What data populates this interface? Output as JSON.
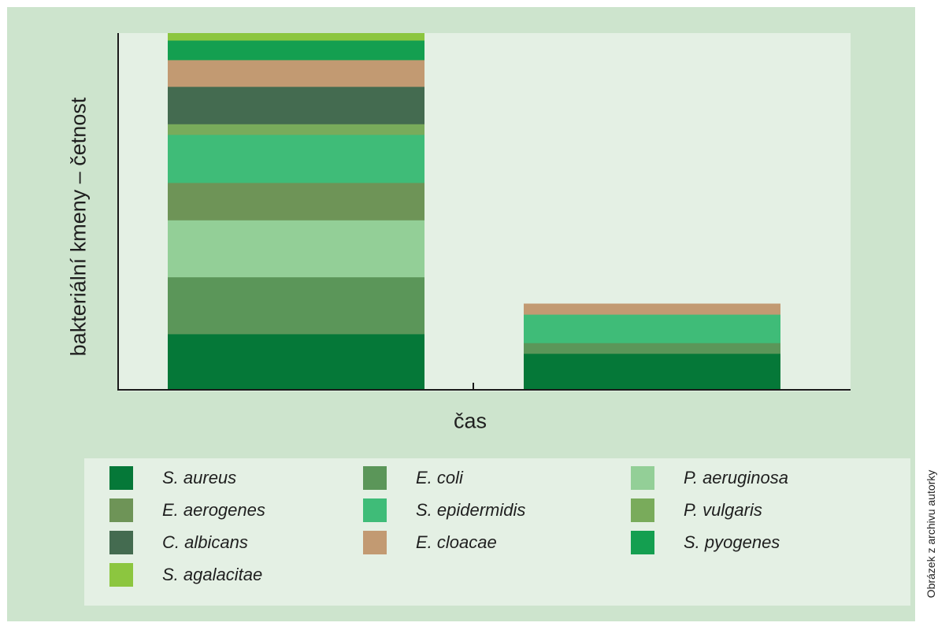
{
  "chart_data": {
    "type": "bar",
    "stacked": true,
    "categories": [
      "",
      ""
    ],
    "xlabel": "čas",
    "ylabel": "bakteriální kmeny – četnost",
    "ylim": [
      0,
      100
    ],
    "grid": false,
    "legend_position": "bottom",
    "series": [
      {
        "name": "S. aureus",
        "color": "#057838",
        "values": [
          15.5,
          10
        ]
      },
      {
        "name": "E. coli",
        "color": "#5b9659",
        "values": [
          16,
          3
        ]
      },
      {
        "name": "P. aeruginosa",
        "color": "#93cf97",
        "values": [
          16,
          0
        ]
      },
      {
        "name": "E. aerogenes",
        "color": "#6e9457",
        "values": [
          10.5,
          0
        ]
      },
      {
        "name": "S. epidermidis",
        "color": "#3fbc78",
        "values": [
          13.5,
          8
        ]
      },
      {
        "name": "P. vulgaris",
        "color": "#79ab5b",
        "values": [
          3,
          0
        ]
      },
      {
        "name": "C. albicans",
        "color": "#446b50",
        "values": [
          10.5,
          0
        ]
      },
      {
        "name": "E. cloacae",
        "color": "#c29a72",
        "values": [
          7.5,
          3
        ]
      },
      {
        "name": "S. pyogenes",
        "color": "#149f50",
        "values": [
          5.5,
          0
        ]
      },
      {
        "name": "S. agalacitae",
        "color": "#8cc63f",
        "values": [
          2,
          0
        ]
      }
    ]
  },
  "legend": [
    {
      "name": "S. aureus",
      "color": "#057838"
    },
    {
      "name": "E. coli",
      "color": "#5b9659"
    },
    {
      "name": "P. aeruginosa",
      "color": "#93cf97"
    },
    {
      "name": "E. aerogenes",
      "color": "#6e9457"
    },
    {
      "name": "S. epidermidis",
      "color": "#3fbc78"
    },
    {
      "name": "P. vulgaris",
      "color": "#79ab5b"
    },
    {
      "name": "C. albicans",
      "color": "#446b50"
    },
    {
      "name": "E. cloacae",
      "color": "#c29a72"
    },
    {
      "name": "S. pyogenes",
      "color": "#149f50"
    },
    {
      "name": "S. agalacitae",
      "color": "#8cc63f"
    }
  ],
  "credit": "Obrázek z archivu autorky"
}
